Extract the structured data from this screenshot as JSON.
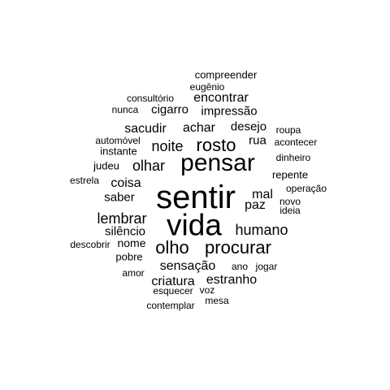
{
  "cloud": {
    "text_color": "#000000",
    "background_color": "#ffffff",
    "words": [
      {
        "text": "sentir",
        "size": "huge"
      },
      {
        "text": "vida",
        "size": "huge"
      },
      {
        "text": "pensar",
        "size": "xl"
      },
      {
        "text": "rosto",
        "size": "l"
      },
      {
        "text": "procurar",
        "size": "l"
      },
      {
        "text": "olho",
        "size": "l"
      },
      {
        "text": "humano",
        "size": "m"
      },
      {
        "text": "noite",
        "size": "m"
      },
      {
        "text": "olhar",
        "size": "m"
      },
      {
        "text": "lembrar",
        "size": "m"
      },
      {
        "text": "sacudir",
        "size": "ms"
      },
      {
        "text": "achar",
        "size": "ms"
      },
      {
        "text": "coisa",
        "size": "ms"
      },
      {
        "text": "paz",
        "size": "ms"
      },
      {
        "text": "mal",
        "size": "ms"
      },
      {
        "text": "sensação",
        "size": "ms"
      },
      {
        "text": "estranho",
        "size": "ms"
      },
      {
        "text": "criatura",
        "size": "ms"
      },
      {
        "text": "silêncio",
        "size": "ms"
      },
      {
        "text": "saber",
        "size": "ms"
      },
      {
        "text": "desejo",
        "size": "ms"
      },
      {
        "text": "rua",
        "size": "ms"
      },
      {
        "text": "encontrar",
        "size": "ms"
      },
      {
        "text": "impressão",
        "size": "ms"
      },
      {
        "text": "cigarro",
        "size": "ms"
      },
      {
        "text": "nome",
        "size": "s"
      },
      {
        "text": "pobre",
        "size": "s"
      },
      {
        "text": "instante",
        "size": "s"
      },
      {
        "text": "automóvel",
        "size": "s"
      },
      {
        "text": "judeu",
        "size": "s"
      },
      {
        "text": "repente",
        "size": "s"
      },
      {
        "text": "jogar",
        "size": "s"
      },
      {
        "text": "ano",
        "size": "s"
      },
      {
        "text": "compreender",
        "size": "s"
      },
      {
        "text": "eugênio",
        "size": "s"
      },
      {
        "text": "consultório",
        "size": "s"
      },
      {
        "text": "nunca",
        "size": "s"
      },
      {
        "text": "roupa",
        "size": "s"
      },
      {
        "text": "acontecer",
        "size": "s"
      },
      {
        "text": "dinheiro",
        "size": "s"
      },
      {
        "text": "estrela",
        "size": "s"
      },
      {
        "text": "operação",
        "size": "s"
      },
      {
        "text": "novo",
        "size": "s"
      },
      {
        "text": "ideia",
        "size": "s"
      },
      {
        "text": "descobrir",
        "size": "s"
      },
      {
        "text": "amor",
        "size": "s"
      },
      {
        "text": "esquecer",
        "size": "s"
      },
      {
        "text": "voz",
        "size": "s"
      },
      {
        "text": "mesa",
        "size": "s"
      },
      {
        "text": "contemplar",
        "size": "s"
      }
    ]
  }
}
